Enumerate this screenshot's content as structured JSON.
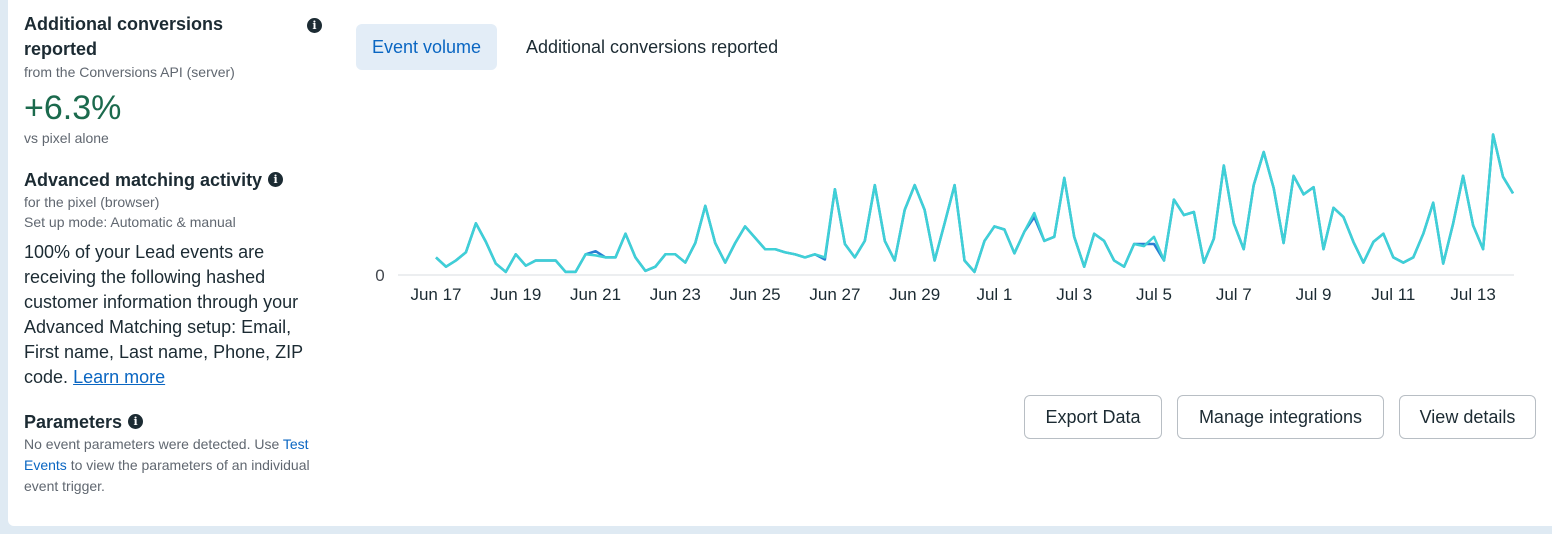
{
  "conversions": {
    "title": "Additional conversions reported",
    "subtitle": "from the Conversions API (server)",
    "value": "+6.3%",
    "comparison": "vs pixel alone"
  },
  "advanced_matching": {
    "title": "Advanced matching activity",
    "subtitle1": "for the pixel (browser)",
    "subtitle2": "Set up mode: Automatic & manual",
    "body": "100% of your Lead events are receiving the following hashed customer information through your Advanced Matching setup: Email, First name, Last name, Phone, ZIP code.",
    "link": "Learn more"
  },
  "parameters": {
    "title": "Parameters",
    "text_before": "No event parameters were detected. Use",
    "link": "Test Events",
    "text_after": "to view the parameters of an individual event trigger."
  },
  "tabs": [
    {
      "label": "Event volume",
      "active": true
    },
    {
      "label": "Additional conversions reported",
      "active": false
    }
  ],
  "buttons": {
    "export": "Export Data",
    "manage": "Manage integrations",
    "details": "View details"
  },
  "colors": {
    "accent": "#0a66c2",
    "positive": "#1b6a4d",
    "series_a": "#3fd0d6",
    "series_b": "#2a7ed3"
  },
  "icons": {
    "info": "info-icon"
  },
  "chart_data": {
    "type": "line",
    "x_start": "Jun 17",
    "x_labels": [
      "Jun 17",
      "Jun 19",
      "Jun 21",
      "Jun 23",
      "Jun 25",
      "Jun 27",
      "Jun 29",
      "Jul 1",
      "Jul 3",
      "Jul 5",
      "Jul 7",
      "Jul 9",
      "Jul 11",
      "Jul 13"
    ],
    "y_ticks": [
      "0"
    ],
    "ylim": [
      0,
      150
    ],
    "series": [
      {
        "color": "#3fd0d6",
        "values": [
          17,
          8,
          14,
          22,
          50,
          32,
          11,
          3,
          20,
          9,
          14,
          14,
          14,
          3,
          3,
          20,
          19,
          17,
          17,
          40,
          17,
          4,
          8,
          20,
          20,
          12,
          31,
          67,
          31,
          12,
          31,
          47,
          36,
          25,
          25,
          22,
          20,
          17,
          20,
          17,
          83,
          30,
          17,
          33,
          87,
          33,
          14,
          63,
          87,
          63,
          14,
          50,
          87,
          14,
          3,
          33,
          47,
          44,
          21,
          42,
          60,
          33,
          37,
          94,
          37,
          8,
          40,
          33,
          14,
          8,
          30,
          28,
          37,
          14,
          73,
          58,
          61,
          12,
          35,
          106,
          50,
          25,
          87,
          119,
          84,
          31,
          96,
          78,
          85,
          25,
          65,
          56,
          32,
          12,
          32,
          40,
          17,
          12,
          17,
          40,
          70,
          11,
          50,
          96,
          48,
          25,
          136,
          95,
          79
        ]
      },
      {
        "color": "#2a7ed3",
        "values": [
          17,
          8,
          14,
          22,
          50,
          32,
          11,
          3,
          20,
          9,
          14,
          14,
          14,
          3,
          3,
          20,
          23,
          17,
          17,
          40,
          17,
          4,
          8,
          20,
          20,
          12,
          31,
          67,
          31,
          12,
          31,
          47,
          36,
          25,
          25,
          22,
          20,
          17,
          20,
          15,
          83,
          30,
          17,
          33,
          87,
          33,
          14,
          63,
          87,
          63,
          14,
          50,
          87,
          14,
          3,
          33,
          47,
          44,
          21,
          42,
          56,
          33,
          37,
          94,
          37,
          8,
          40,
          33,
          14,
          8,
          30,
          30,
          30,
          14,
          73,
          58,
          61,
          12,
          35,
          106,
          50,
          25,
          87,
          119,
          84,
          31,
          96,
          78,
          85,
          25,
          65,
          56,
          32,
          12,
          32,
          40,
          17,
          12,
          17,
          40,
          70,
          11,
          50,
          96,
          48,
          25,
          136,
          95,
          79
        ]
      }
    ]
  }
}
